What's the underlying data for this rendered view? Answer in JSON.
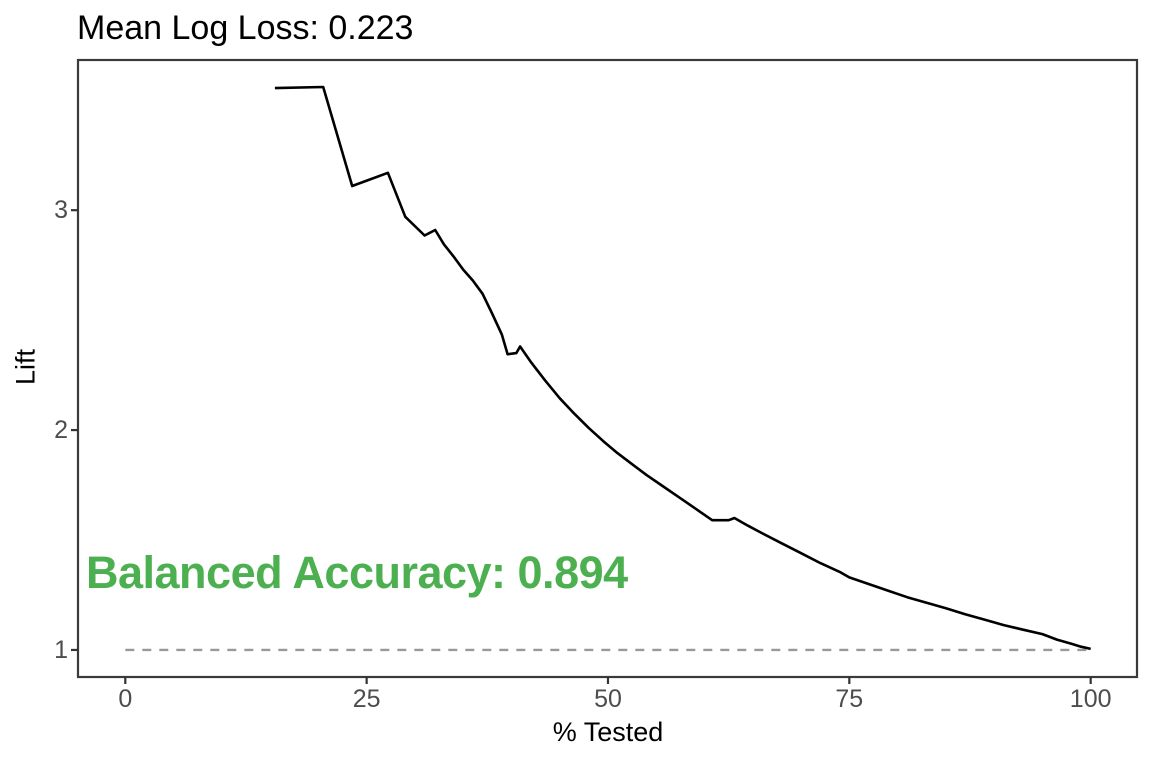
{
  "chart_data": {
    "type": "line",
    "title": "Mean Log Loss: 0.223",
    "xlabel": "% Tested",
    "ylabel": "Lift",
    "x_ticks": [
      0,
      25,
      50,
      75,
      100
    ],
    "y_ticks": [
      1,
      2,
      3
    ],
    "xlim": [
      -4.9,
      104.8
    ],
    "ylim": [
      0.877,
      3.683
    ],
    "grid": "off",
    "legend": "none",
    "annotation": {
      "text": "Balanced Accuracy: 0.894",
      "color": "#4caf50"
    },
    "baseline": {
      "y": 1.0,
      "x_start": 0,
      "x_end": 100,
      "style": "dashed",
      "color": "#999999"
    },
    "colors": {
      "panel_border": "#3a3a3a",
      "tick_mark": "#333333",
      "tick_label": "#4d4d4d",
      "axis_title": "#000000",
      "title": "#000000",
      "curve": "#000000",
      "background": "#ffffff"
    },
    "series": [
      {
        "name": "cumulative-lift",
        "color": "#000000",
        "points": [
          [
            15.5,
            3.555
          ],
          [
            20.5,
            3.56
          ],
          [
            23.5,
            3.11
          ],
          [
            27.2,
            3.17
          ],
          [
            29.0,
            2.97
          ],
          [
            31.0,
            2.885
          ],
          [
            32.1,
            2.91
          ],
          [
            33.0,
            2.845
          ],
          [
            34.0,
            2.79
          ],
          [
            35.0,
            2.73
          ],
          [
            36.0,
            2.68
          ],
          [
            37.0,
            2.62
          ],
          [
            38.0,
            2.53
          ],
          [
            39.0,
            2.435
          ],
          [
            39.6,
            2.345
          ],
          [
            40.5,
            2.35
          ],
          [
            40.9,
            2.38
          ],
          [
            42.0,
            2.31
          ],
          [
            43.5,
            2.225
          ],
          [
            45.0,
            2.145
          ],
          [
            46.5,
            2.075
          ],
          [
            48.0,
            2.01
          ],
          [
            49.5,
            1.95
          ],
          [
            51.0,
            1.895
          ],
          [
            52.5,
            1.845
          ],
          [
            54.0,
            1.795
          ],
          [
            55.5,
            1.75
          ],
          [
            57.0,
            1.705
          ],
          [
            58.5,
            1.66
          ],
          [
            59.8,
            1.62
          ],
          [
            60.8,
            1.59
          ],
          [
            62.5,
            1.59
          ],
          [
            63.1,
            1.6
          ],
          [
            64.5,
            1.565
          ],
          [
            66.0,
            1.53
          ],
          [
            68.0,
            1.485
          ],
          [
            70.0,
            1.44
          ],
          [
            72.0,
            1.395
          ],
          [
            74.0,
            1.355
          ],
          [
            75.0,
            1.33
          ],
          [
            77.0,
            1.3
          ],
          [
            79.0,
            1.27
          ],
          [
            81.0,
            1.24
          ],
          [
            83.0,
            1.215
          ],
          [
            85.0,
            1.19
          ],
          [
            87.0,
            1.162
          ],
          [
            89.0,
            1.138
          ],
          [
            91.0,
            1.113
          ],
          [
            93.0,
            1.092
          ],
          [
            95.0,
            1.072
          ],
          [
            96.5,
            1.047
          ],
          [
            98.0,
            1.028
          ],
          [
            99.0,
            1.015
          ],
          [
            100.0,
            1.005
          ]
        ]
      }
    ]
  }
}
